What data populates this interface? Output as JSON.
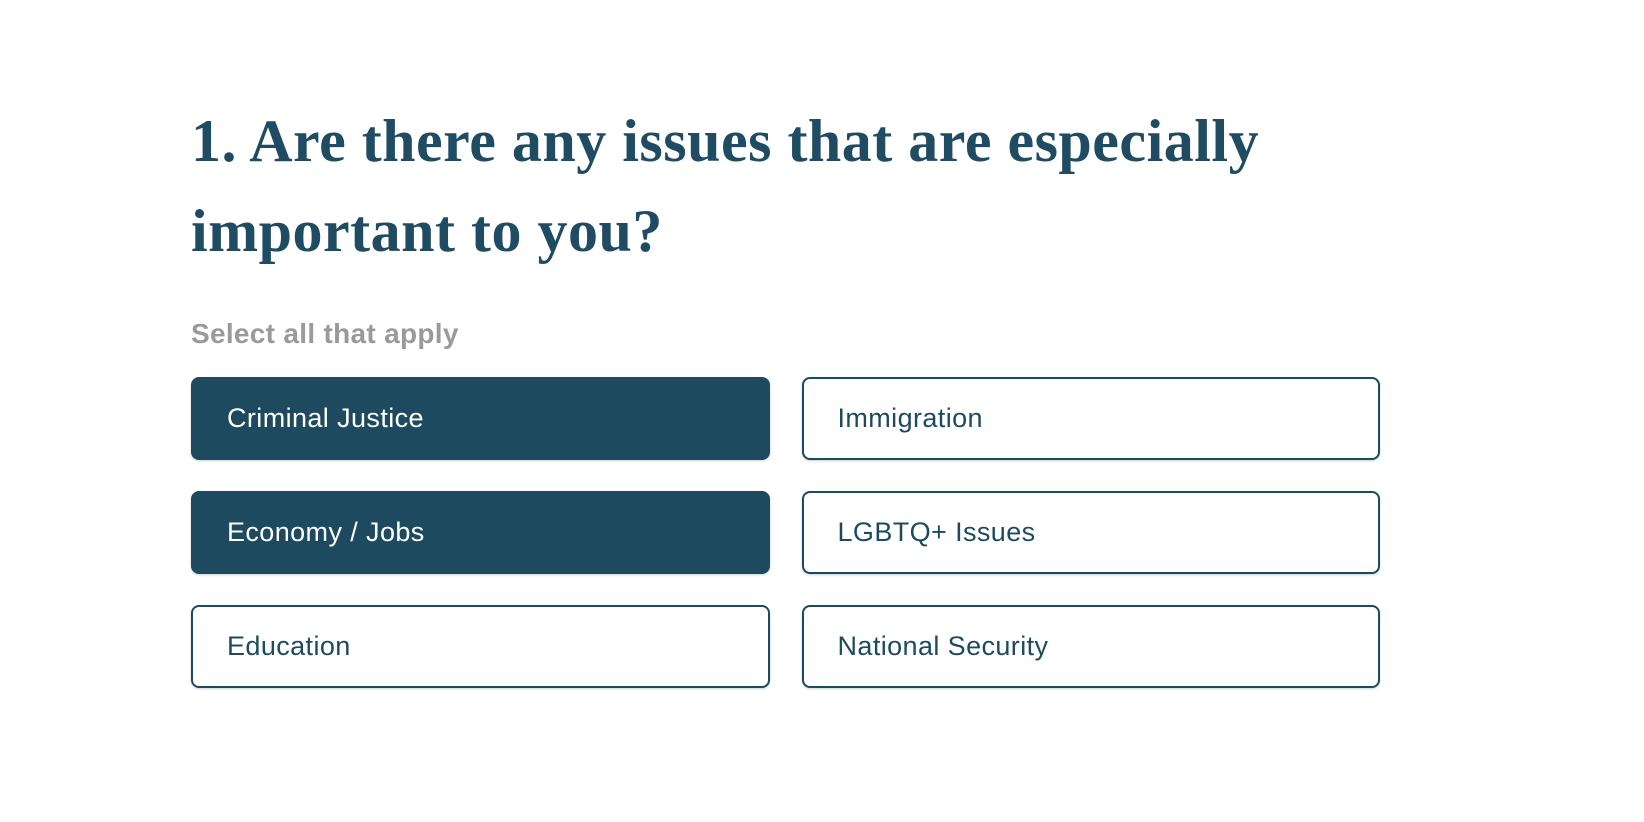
{
  "colors": {
    "accent": "#1d4a5f",
    "title": "#1f4b63",
    "subtitle_gray": "#9a9a9a",
    "selected_text": "#ffffff",
    "background": "#ffffff"
  },
  "question": {
    "title": "1. Are there any issues that are especially\nimportant to you?",
    "instruction": "Select all that apply",
    "options": [
      {
        "label": "Criminal Justice",
        "selected": true
      },
      {
        "label": "Immigration",
        "selected": false
      },
      {
        "label": "Economy / Jobs",
        "selected": true
      },
      {
        "label": "LGBTQ+ Issues",
        "selected": false
      },
      {
        "label": "Education",
        "selected": false
      },
      {
        "label": "National Security",
        "selected": false
      }
    ]
  }
}
